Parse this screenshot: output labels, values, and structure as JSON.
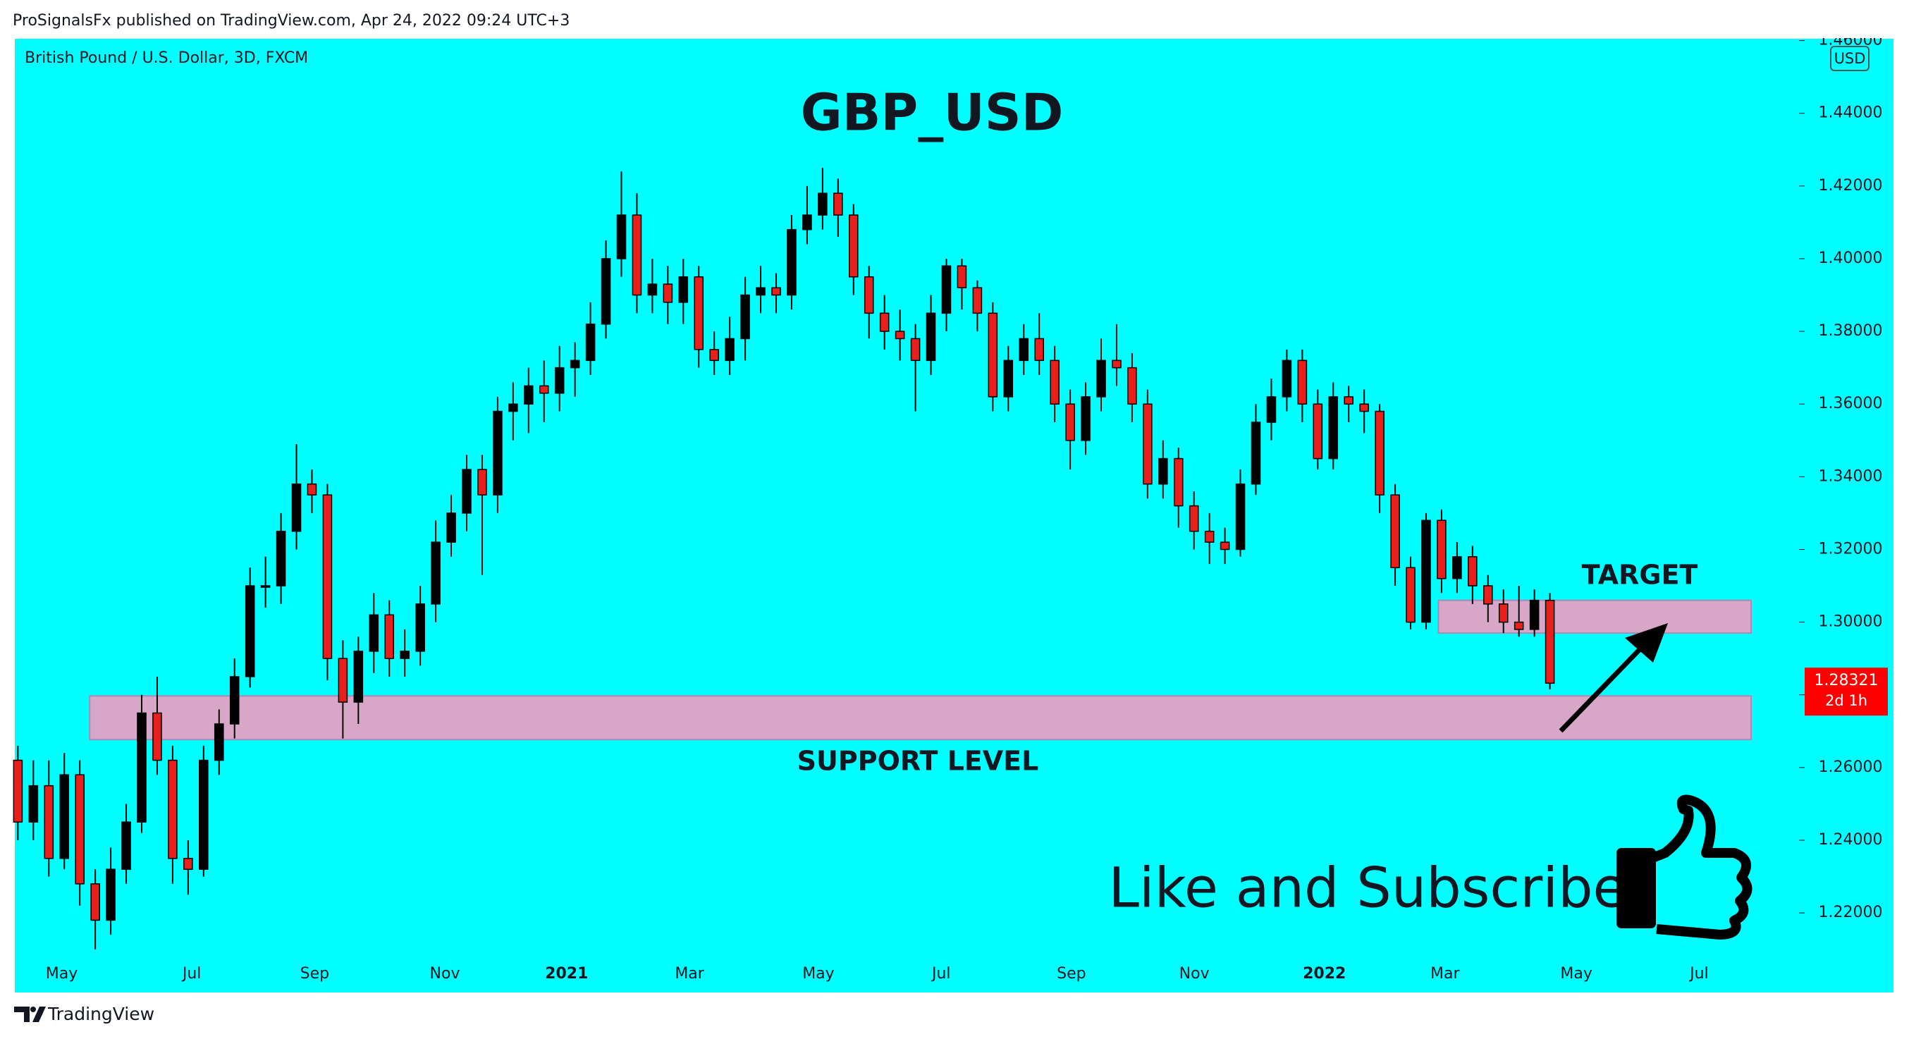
{
  "header": {
    "published": "ProSignalsFx published on TradingView.com, Apr 24, 2022 09:24 UTC+3",
    "symbol": "British Pound / U.S. Dollar, 3D, FXCM",
    "currency": "USD"
  },
  "footer": {
    "brand": "TradingView"
  },
  "promo": "Like and Subscribe",
  "chart_data": {
    "type": "candlestick",
    "title": "GBP_USD",
    "x": [
      0,
      1,
      2,
      3,
      4,
      5,
      6,
      7,
      8,
      9,
      10,
      11,
      12,
      13,
      14,
      15,
      16,
      17,
      18,
      19,
      20,
      21,
      22,
      23,
      24,
      25,
      26,
      27,
      28,
      29,
      30,
      31,
      32,
      33,
      34,
      35,
      36,
      37,
      38,
      39,
      40,
      41,
      42,
      43,
      44,
      45,
      46,
      47,
      48,
      49,
      50,
      51,
      52,
      53,
      54,
      55,
      56,
      57,
      58,
      59,
      60,
      61,
      62,
      63,
      64,
      65,
      66,
      67,
      68,
      69,
      70,
      71,
      72,
      73,
      74,
      75,
      76,
      77,
      78,
      79,
      80,
      81,
      82,
      83,
      84,
      85,
      86,
      87,
      88,
      89,
      90,
      91,
      92,
      93,
      94,
      95,
      96,
      97,
      98,
      99
    ],
    "open": [
      1.262,
      1.245,
      1.255,
      1.235,
      1.258,
      1.228,
      1.218,
      1.232,
      1.245,
      1.275,
      1.262,
      1.235,
      1.232,
      1.262,
      1.272,
      1.285,
      1.31,
      1.31,
      1.325,
      1.338,
      1.335,
      1.29,
      1.278,
      1.292,
      1.302,
      1.29,
      1.292,
      1.305,
      1.322,
      1.33,
      1.342,
      1.335,
      1.358,
      1.36,
      1.365,
      1.363,
      1.37,
      1.372,
      1.382,
      1.4,
      1.412,
      1.39,
      1.393,
      1.388,
      1.395,
      1.375,
      1.372,
      1.378,
      1.39,
      1.392,
      1.39,
      1.408,
      1.412,
      1.418,
      1.412,
      1.395,
      1.385,
      1.38,
      1.378,
      1.372,
      1.385,
      1.398,
      1.392,
      1.385,
      1.362,
      1.372,
      1.378,
      1.372,
      1.36,
      1.35,
      1.362,
      1.372,
      1.37,
      1.36,
      1.338,
      1.345,
      1.332,
      1.325,
      1.322,
      1.32,
      1.338,
      1.355,
      1.362,
      1.372,
      1.36,
      1.345,
      1.362,
      1.36,
      1.358,
      1.335,
      1.315,
      1.3,
      1.328,
      1.312,
      1.318,
      1.31,
      1.305,
      1.3,
      1.298,
      1.306
    ],
    "high": [
      1.266,
      1.262,
      1.262,
      1.264,
      1.262,
      1.232,
      1.238,
      1.25,
      1.28,
      1.285,
      1.266,
      1.24,
      1.266,
      1.276,
      1.29,
      1.315,
      1.318,
      1.33,
      1.349,
      1.342,
      1.338,
      1.295,
      1.296,
      1.308,
      1.306,
      1.298,
      1.31,
      1.328,
      1.335,
      1.346,
      1.346,
      1.362,
      1.366,
      1.37,
      1.372,
      1.376,
      1.377,
      1.388,
      1.405,
      1.424,
      1.418,
      1.4,
      1.398,
      1.4,
      1.398,
      1.38,
      1.384,
      1.395,
      1.398,
      1.396,
      1.412,
      1.42,
      1.425,
      1.422,
      1.415,
      1.398,
      1.39,
      1.386,
      1.382,
      1.39,
      1.4,
      1.4,
      1.394,
      1.388,
      1.376,
      1.382,
      1.385,
      1.376,
      1.364,
      1.366,
      1.378,
      1.382,
      1.374,
      1.364,
      1.35,
      1.348,
      1.336,
      1.33,
      1.326,
      1.342,
      1.36,
      1.367,
      1.375,
      1.375,
      1.364,
      1.366,
      1.365,
      1.364,
      1.36,
      1.338,
      1.318,
      1.33,
      1.331,
      1.322,
      1.321,
      1.313,
      1.309,
      1.31,
      1.309,
      1.308
    ],
    "low": [
      1.24,
      1.24,
      1.23,
      1.232,
      1.222,
      1.21,
      1.214,
      1.228,
      1.242,
      1.258,
      1.228,
      1.225,
      1.23,
      1.258,
      1.268,
      1.282,
      1.304,
      1.305,
      1.32,
      1.33,
      1.284,
      1.268,
      1.272,
      1.286,
      1.285,
      1.285,
      1.288,
      1.3,
      1.318,
      1.325,
      1.313,
      1.33,
      1.35,
      1.352,
      1.355,
      1.358,
      1.362,
      1.368,
      1.378,
      1.395,
      1.385,
      1.385,
      1.382,
      1.382,
      1.37,
      1.368,
      1.368,
      1.372,
      1.385,
      1.385,
      1.386,
      1.404,
      1.408,
      1.406,
      1.39,
      1.378,
      1.375,
      1.372,
      1.358,
      1.368,
      1.38,
      1.386,
      1.38,
      1.358,
      1.358,
      1.368,
      1.368,
      1.355,
      1.342,
      1.346,
      1.358,
      1.365,
      1.355,
      1.334,
      1.334,
      1.326,
      1.32,
      1.316,
      1.316,
      1.318,
      1.335,
      1.35,
      1.358,
      1.355,
      1.342,
      1.342,
      1.355,
      1.352,
      1.33,
      1.31,
      1.298,
      1.298,
      1.308,
      1.308,
      1.305,
      1.3,
      1.297,
      1.296,
      1.296,
      1.2815
    ],
    "close": [
      1.245,
      1.255,
      1.235,
      1.258,
      1.228,
      1.218,
      1.232,
      1.245,
      1.275,
      1.262,
      1.235,
      1.232,
      1.262,
      1.272,
      1.285,
      1.31,
      1.31,
      1.325,
      1.338,
      1.335,
      1.29,
      1.278,
      1.292,
      1.302,
      1.29,
      1.292,
      1.305,
      1.322,
      1.33,
      1.342,
      1.335,
      1.358,
      1.36,
      1.365,
      1.363,
      1.37,
      1.372,
      1.382,
      1.4,
      1.412,
      1.39,
      1.393,
      1.388,
      1.395,
      1.375,
      1.372,
      1.378,
      1.39,
      1.392,
      1.39,
      1.408,
      1.412,
      1.418,
      1.412,
      1.395,
      1.385,
      1.38,
      1.378,
      1.372,
      1.385,
      1.398,
      1.392,
      1.385,
      1.362,
      1.372,
      1.378,
      1.372,
      1.36,
      1.35,
      1.362,
      1.372,
      1.37,
      1.36,
      1.338,
      1.345,
      1.332,
      1.325,
      1.322,
      1.32,
      1.338,
      1.355,
      1.362,
      1.372,
      1.36,
      1.345,
      1.362,
      1.36,
      1.358,
      1.335,
      1.315,
      1.3,
      1.328,
      1.312,
      1.318,
      1.31,
      1.305,
      1.3,
      1.298,
      1.306,
      1.2832
    ],
    "up_color": "#000000",
    "down_color": "#e8201c",
    "wick_color": "#000000",
    "background": "#00ffff",
    "xlim": [
      -0.2,
      115.1
    ],
    "xticks": [
      {
        "value": 2.83,
        "label": "May"
      },
      {
        "value": 11.24,
        "label": "Jul"
      },
      {
        "value": 19.18,
        "label": "Sep"
      },
      {
        "value": 27.59,
        "label": "Nov"
      },
      {
        "value": 35.46,
        "label": "2021"
      },
      {
        "value": 43.4,
        "label": "Mar"
      },
      {
        "value": 51.73,
        "label": "May"
      },
      {
        "value": 59.67,
        "label": "Jul"
      },
      {
        "value": 68.08,
        "label": "Sep"
      },
      {
        "value": 76.02,
        "label": "Nov"
      },
      {
        "value": 84.43,
        "label": "2022"
      },
      {
        "value": 92.22,
        "label": "Mar"
      },
      {
        "value": 100.71,
        "label": "May"
      },
      {
        "value": 108.65,
        "label": "Jul"
      }
    ],
    "ylim": [
      1.1985,
      1.4605
    ],
    "yticks": [
      {
        "value": 1.22,
        "label": "1.22000"
      },
      {
        "value": 1.24,
        "label": "1.24000"
      },
      {
        "value": 1.26,
        "label": "1.26000"
      },
      {
        "value": 1.28,
        "label": "1.28000"
      },
      {
        "value": 1.3,
        "label": "1.30000"
      },
      {
        "value": 1.32,
        "label": "1.32000"
      },
      {
        "value": 1.34,
        "label": "1.34000"
      },
      {
        "value": 1.36,
        "label": "1.36000"
      },
      {
        "value": 1.38,
        "label": "1.38000"
      },
      {
        "value": 1.4,
        "label": "1.40000"
      },
      {
        "value": 1.42,
        "label": "1.42000"
      },
      {
        "value": 1.44,
        "label": "1.44000"
      },
      {
        "value": 1.46,
        "label": "1.46000"
      }
    ],
    "last_price": 1.28321,
    "countdown": "2d 1h",
    "last_price_color": "#ff0000",
    "zones": [
      {
        "label": "TARGET",
        "xlim": [
          91.8,
          112
        ],
        "ylim": [
          1.297,
          1.306
        ],
        "color": "#d8a7c7"
      },
      {
        "label": "SUPPORT LEVEL",
        "xlim": [
          4.64,
          112
        ],
        "ylim": [
          1.2677,
          1.2797
        ],
        "color": "#d8a7c7"
      }
    ]
  }
}
